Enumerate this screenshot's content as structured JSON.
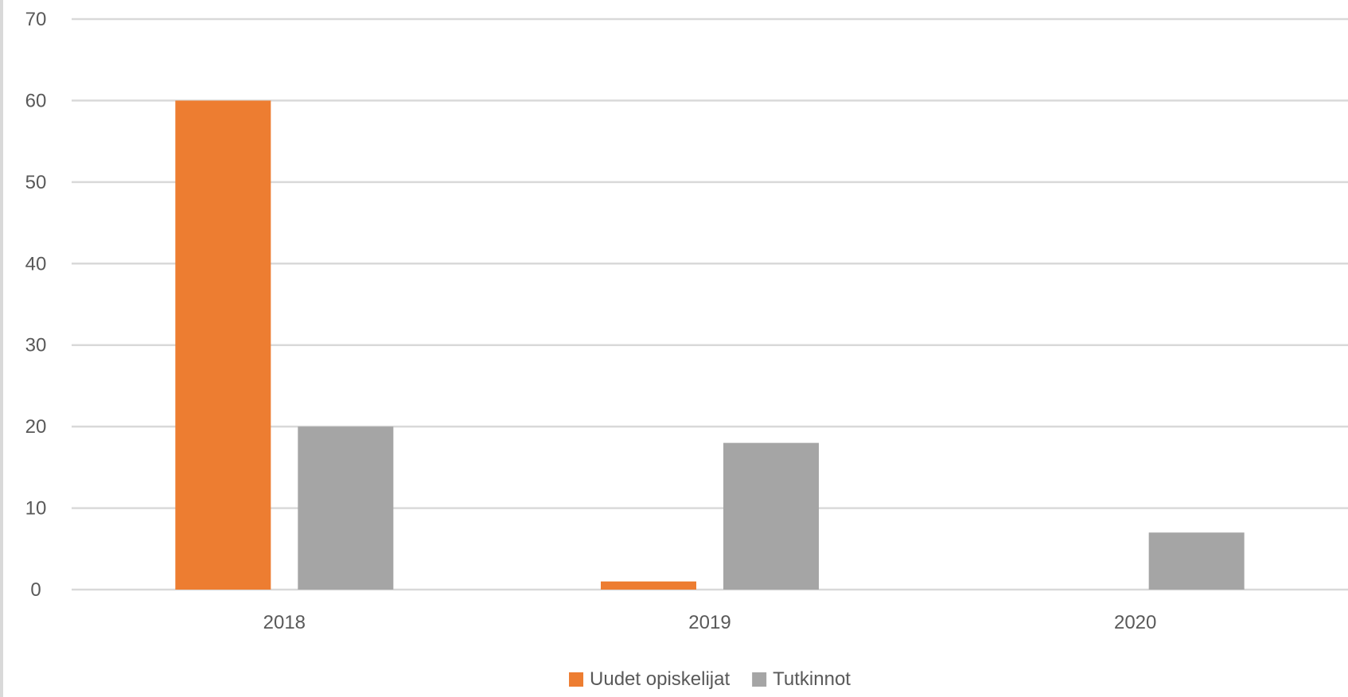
{
  "chart_data": {
    "type": "bar",
    "categories": [
      "2018",
      "2019",
      "2020"
    ],
    "series": [
      {
        "name": "Uudet opiskelijat",
        "color": "#ED7D31",
        "values": [
          60,
          1,
          0
        ]
      },
      {
        "name": "Tutkinnot",
        "color": "#A5A5A5",
        "values": [
          20,
          18,
          7
        ]
      }
    ],
    "ylim": [
      0,
      70
    ],
    "yticks": [
      0,
      10,
      20,
      30,
      40,
      50,
      60,
      70
    ],
    "title": "",
    "xlabel": "",
    "ylabel": "",
    "grid": true,
    "legend_position": "bottom",
    "colors": {
      "gridline": "#D9D9D9",
      "text": "#595959"
    }
  }
}
